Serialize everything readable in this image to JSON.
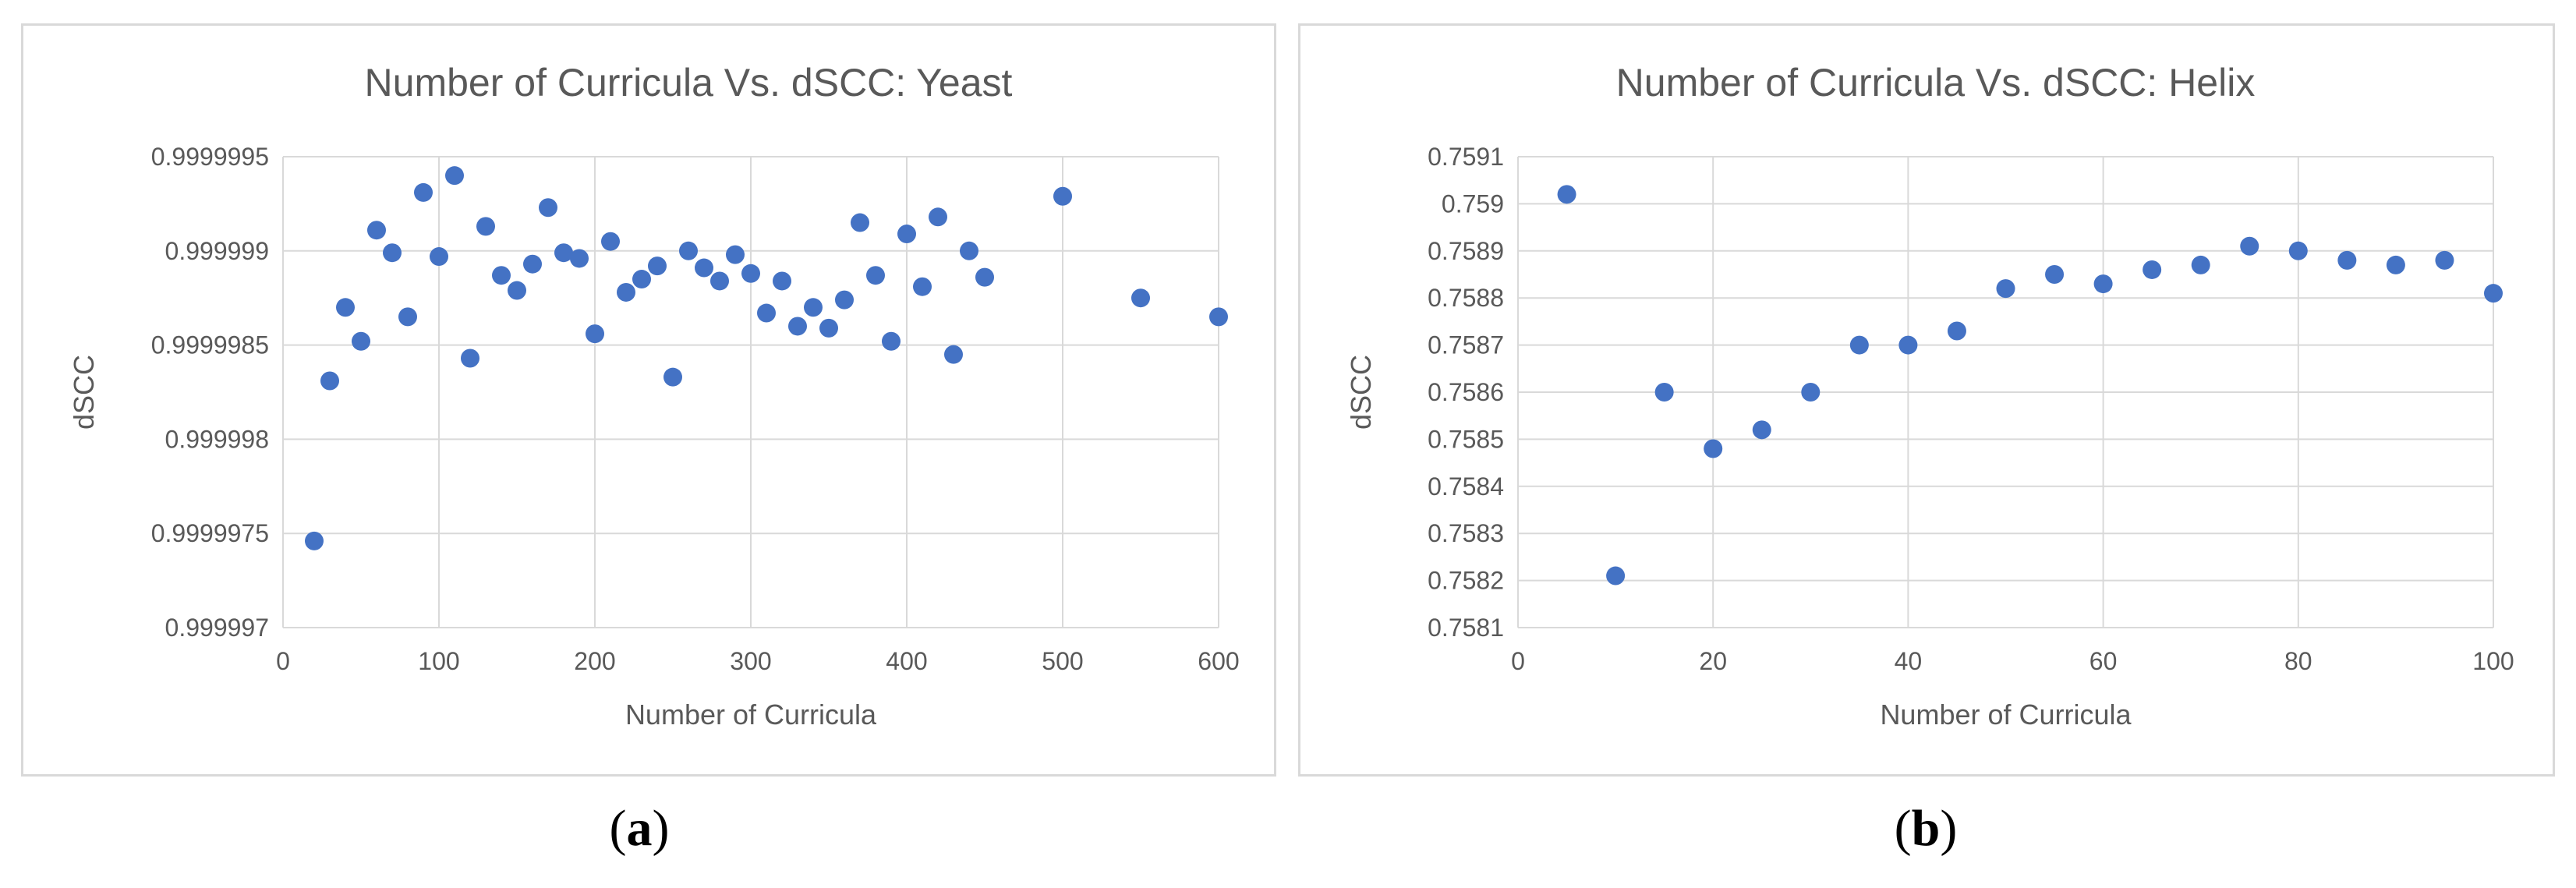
{
  "captions": {
    "a": "a",
    "b": "b"
  },
  "chart_data": [
    {
      "type": "scatter",
      "title": "Number of Curricula Vs. dSCC: Yeast",
      "xlabel": "Number of Curricula",
      "ylabel": "dSCC",
      "xlim": [
        0,
        600
      ],
      "ylim": [
        0.999997,
        0.9999995
      ],
      "xticks": [
        0,
        100,
        200,
        300,
        400,
        500,
        600
      ],
      "xtick_labels": [
        "0",
        "100",
        "200",
        "300",
        "400",
        "500",
        "600"
      ],
      "yticks": [
        0.999997,
        0.9999975,
        0.999998,
        0.9999985,
        0.999999,
        0.9999995
      ],
      "ytick_labels": [
        "0.999997",
        "0.9999975",
        "0.999998",
        "0.9999985",
        "0.999999",
        "0.9999995"
      ],
      "grid": true,
      "marker_color": "#4472C4",
      "x": [
        20,
        30,
        40,
        50,
        60,
        70,
        80,
        90,
        100,
        110,
        120,
        130,
        140,
        150,
        160,
        170,
        180,
        190,
        200,
        210,
        220,
        230,
        240,
        250,
        260,
        270,
        280,
        290,
        300,
        310,
        320,
        330,
        340,
        350,
        360,
        370,
        380,
        390,
        400,
        410,
        420,
        430,
        440,
        450,
        500,
        550,
        600
      ],
      "y": [
        0.99999746,
        0.99999831,
        0.9999987,
        0.99999852,
        0.99999911,
        0.99999899,
        0.99999865,
        0.99999931,
        0.99999897,
        0.9999994,
        0.99999843,
        0.99999913,
        0.99999887,
        0.99999879,
        0.99999893,
        0.99999923,
        0.99999899,
        0.99999896,
        0.99999856,
        0.99999905,
        0.99999878,
        0.99999885,
        0.99999892,
        0.99999833,
        0.999999,
        0.99999891,
        0.99999884,
        0.99999898,
        0.99999888,
        0.99999867,
        0.99999884,
        0.9999986,
        0.9999987,
        0.99999859,
        0.99999874,
        0.99999915,
        0.99999887,
        0.99999852,
        0.99999909,
        0.99999881,
        0.99999918,
        0.99999845,
        0.999999,
        0.99999886,
        0.99999929,
        0.99999875,
        0.99999865
      ]
    },
    {
      "type": "scatter",
      "title": "Number of Curricula Vs. dSCC: Helix",
      "xlabel": "Number of Curricula",
      "ylabel": "dSCC",
      "xlim": [
        0,
        100
      ],
      "ylim": [
        0.7581,
        0.7591
      ],
      "xticks": [
        0,
        20,
        40,
        60,
        80,
        100
      ],
      "xtick_labels": [
        "0",
        "20",
        "40",
        "60",
        "80",
        "100"
      ],
      "yticks": [
        0.7581,
        0.7582,
        0.7583,
        0.7584,
        0.7585,
        0.7586,
        0.7587,
        0.7588,
        0.7589,
        0.759,
        0.7591
      ],
      "ytick_labels": [
        "0.7581",
        "0.7582",
        "0.7583",
        "0.7584",
        "0.7585",
        "0.7586",
        "0.7587",
        "0.7588",
        "0.7589",
        "0.759",
        "0.7591"
      ],
      "grid": true,
      "marker_color": "#4472C4",
      "x": [
        5,
        10,
        15,
        20,
        25,
        30,
        35,
        40,
        45,
        50,
        55,
        60,
        65,
        70,
        75,
        80,
        85,
        90,
        95,
        100
      ],
      "y": [
        0.75902,
        0.75821,
        0.7586,
        0.75848,
        0.75852,
        0.7586,
        0.7587,
        0.7587,
        0.75873,
        0.75882,
        0.75885,
        0.75883,
        0.75886,
        0.75887,
        0.75891,
        0.7589,
        0.75888,
        0.75887,
        0.75888,
        0.75881
      ]
    }
  ]
}
